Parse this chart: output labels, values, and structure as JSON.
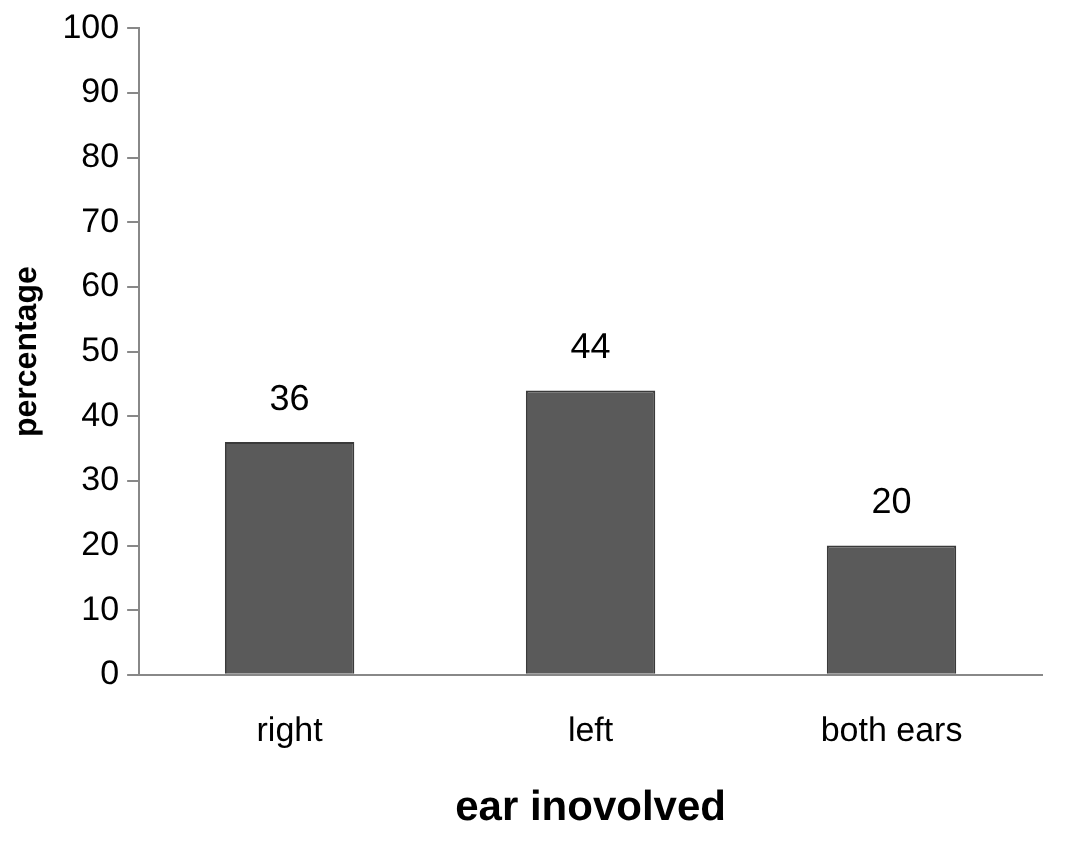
{
  "chart_data": {
    "type": "bar",
    "xlabel": "ear inovolved",
    "ylabel": "percentage",
    "categories": [
      "right",
      "left",
      "both ears"
    ],
    "values": [
      36,
      44,
      20
    ],
    "color": "#5a5a5a",
    "ylim": [
      0,
      100
    ],
    "yticks": [
      0,
      10,
      20,
      30,
      40,
      50,
      60,
      70,
      80,
      90,
      100
    ],
    "grid": false,
    "legend": false,
    "data_labels": true
  }
}
